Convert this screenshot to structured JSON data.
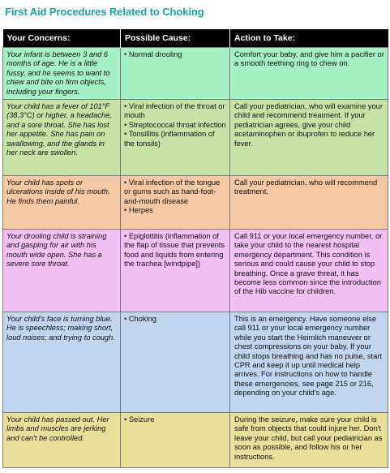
{
  "title": "First Aid Procedures Related to Choking",
  "headers": [
    "Your Concerns:",
    "Possible Cause:",
    "Action to Take:"
  ],
  "rows": [
    {
      "color": "#a6f0c6",
      "concern": "Your infant is between 3 and 6 months of age. He is a little fussy, and he seems to want to chew and bite on firm objects, including your fingers.",
      "causes": [
        "• Normal drooling"
      ],
      "action": "Comfort your baby, and give him a pacifier or a smooth teething ring to chew on."
    },
    {
      "color": "#c8e2a6",
      "concern": "Your child has a fever of 101°F (38.3°C) or higher, a headache, and a sore throat. She has lost her appetite. She has pain on swallowing, and the glands in her neck are swollen.",
      "causes": [
        "• Viral infection of the throat or mouth",
        "• Streptococcal throat infection",
        "• Tonsillitis (inflammation of the tonsils)"
      ],
      "action": "Call your pediatrician, who will examine your child and recommend treatment. If your pediatrician agrees, give your child acetaminophen or ibuprofen to reduce her fever."
    },
    {
      "color": "#f5c7a2",
      "concern": "Your child has spots or ulcerations inside of his mouth. He finds them painful.",
      "causes": [
        "• Viral infection of the tongue or gums such as hand-foot- and-mouth disease",
        "• Herpes"
      ],
      "action": "Call your pediatrician, who will recommend treatment."
    },
    {
      "color": "#f4bff4",
      "concern": "Your drooling child is straining and gasping for air with his mouth wide open. She has a severe sore throat.",
      "causes": [
        "• Epiglottitis (inflammation of the flap of tissue that prevents food and liquids from entering the trachea [windpipe])"
      ],
      "action": "Call 911 or your local emergency number, or take your child to the nearest hospital emergency department. This condition is serious and could cause your child to stop breathing. Once a grave threat, it has become less common since the introduction of the Hib vaccine for children."
    },
    {
      "color": "#c1d5ef",
      "concern": "Your child's face is turning blue. He is speechless; making short, loud noises; and trying to cough.",
      "causes": [
        "• Choking"
      ],
      "action": "This is an emergency. Have someone else call 911 or your local emergency number while you start the Heimlich maneuver or chest compressions on your baby. If your child stops breathing and has no pulse, start CPR and keep it up until medical help arrives. For instructions on how to handle these emergencies, see page 215 or 216, depending on your child's age."
    },
    {
      "color": "#e7e09b",
      "concern": "Your child has passed out. Her limbs and muscles are jerking and can't be controlled.",
      "causes": [
        "• Seizure"
      ],
      "action": "During the seizure, make sure your child is safe from objects that could injure her. Don't leave your child, but call your pediatrician as soon as possible, and follow his or her instructions."
    }
  ]
}
